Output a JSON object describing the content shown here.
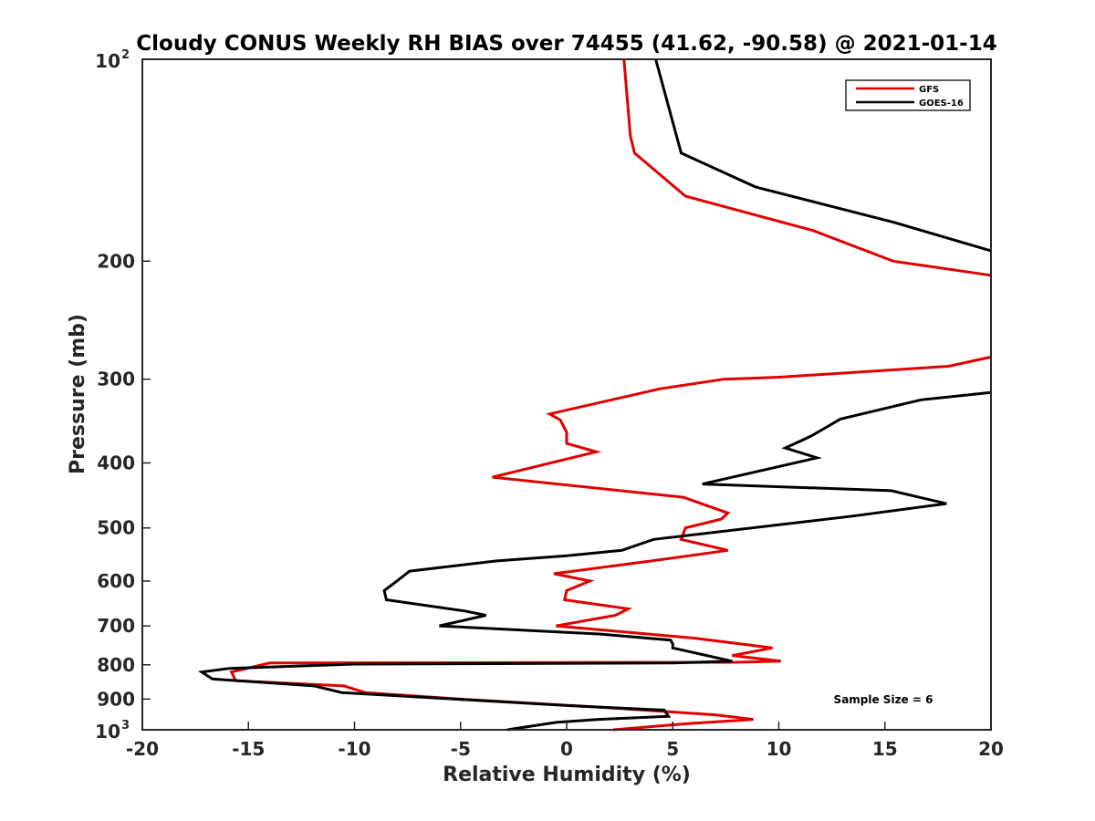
{
  "chart_data": {
    "type": "line",
    "title": "Cloudy CONUS Weekly RH BIAS over 74455 (41.62, -90.58) @ 2021-01-14",
    "xlabel": "Relative Humidity (%)",
    "ylabel": "Pressure (mb)",
    "xlim": [
      -20,
      20
    ],
    "ylim": [
      100,
      1000
    ],
    "y_scale": "log",
    "y_reversed": true,
    "x_ticks": [
      "-20",
      "-15",
      "-10",
      "-5",
      "0",
      "5",
      "10",
      "15",
      "20"
    ],
    "y_ticks": [
      {
        "value": 100,
        "base": "10",
        "exp": "2"
      },
      {
        "value": 200,
        "label": "200"
      },
      {
        "value": 300,
        "label": "300"
      },
      {
        "value": 400,
        "label": "400"
      },
      {
        "value": 500,
        "label": "500"
      },
      {
        "value": 600,
        "label": "600"
      },
      {
        "value": 700,
        "label": "700"
      },
      {
        "value": 800,
        "label": "800"
      },
      {
        "value": 900,
        "label": "900"
      },
      {
        "value": 1000,
        "base": "10",
        "exp": "3"
      }
    ],
    "legend_position": "top-right",
    "annotation": "Sample Size = 6",
    "series": [
      {
        "name": "GFS",
        "color": "#e00000",
        "segments": [
          [
            [
              2.7,
              100
            ],
            [
              3.0,
              130
            ],
            [
              3.2,
              138
            ],
            [
              5.6,
              160
            ],
            [
              11.6,
              180
            ],
            [
              15.4,
              200
            ],
            [
              20,
              210
            ]
          ],
          [
            [
              20,
              278
            ],
            [
              18,
              287
            ],
            [
              10,
              298
            ],
            [
              7.4,
              300
            ],
            [
              4.4,
              310
            ],
            [
              -0.8,
              338
            ],
            [
              -0.3,
              345
            ],
            [
              0.0,
              360
            ],
            [
              0.0,
              374
            ],
            [
              1.4,
              385
            ],
            [
              -3.5,
              420
            ],
            [
              5.5,
              450
            ],
            [
              7.6,
              475
            ],
            [
              7.3,
              485
            ],
            [
              5.6,
              500
            ],
            [
              5.4,
              520
            ],
            [
              7.6,
              540
            ],
            [
              4.0,
              560
            ],
            [
              -0.6,
              585
            ],
            [
              1.1,
              600
            ],
            [
              0.0,
              620
            ],
            [
              -0.1,
              640
            ],
            [
              2.9,
              660
            ],
            [
              2.3,
              675
            ],
            [
              -0.5,
              700
            ],
            [
              6.0,
              730
            ],
            [
              9.7,
              755
            ],
            [
              7.8,
              775
            ],
            [
              10.1,
              790
            ],
            [
              8.0,
              793
            ],
            [
              -14,
              795
            ],
            [
              -15.8,
              820
            ],
            [
              -15.6,
              845
            ],
            [
              -10.5,
              860
            ],
            [
              -9.5,
              880
            ],
            [
              -5.0,
              900
            ],
            [
              1.5,
              925
            ],
            [
              7.0,
              950
            ],
            [
              8.8,
              965
            ],
            [
              5.5,
              980
            ],
            [
              2.2,
              1000
            ]
          ]
        ]
      },
      {
        "name": "GOES-16",
        "color": "#000000",
        "segments": [
          [
            [
              4.2,
              100
            ],
            [
              5.4,
              138
            ],
            [
              8.9,
              155
            ],
            [
              15.4,
              175
            ],
            [
              20,
              193
            ]
          ],
          [
            [
              20,
              314
            ],
            [
              16.7,
              322
            ],
            [
              12.9,
              344
            ],
            [
              11.5,
              365
            ],
            [
              10.3,
              380
            ],
            [
              11.8,
              393
            ],
            [
              6.4,
              430
            ],
            [
              15.3,
              440
            ],
            [
              17.9,
              460
            ],
            [
              13.5,
              480
            ],
            [
              4.1,
              520
            ],
            [
              2.6,
              540
            ],
            [
              0.0,
              550
            ],
            [
              -3.3,
              560
            ],
            [
              -7.4,
              580
            ],
            [
              -8.0,
              600
            ],
            [
              -8.6,
              620
            ],
            [
              -8.5,
              640
            ],
            [
              -4.8,
              665
            ],
            [
              -3.8,
              675
            ],
            [
              -6.0,
              700
            ],
            [
              1.6,
              720
            ],
            [
              4.9,
              735
            ],
            [
              5.0,
              745
            ],
            [
              5.0,
              755
            ],
            [
              7.8,
              790
            ],
            [
              5.0,
              795
            ],
            [
              -10.0,
              798
            ],
            [
              -15.9,
              810
            ],
            [
              -17.2,
              820
            ],
            [
              -16.7,
              840
            ],
            [
              -11.9,
              860
            ],
            [
              -10.6,
              880
            ],
            [
              0.0,
              920
            ],
            [
              4.6,
              935
            ],
            [
              4.8,
              955
            ],
            [
              1.5,
              965
            ],
            [
              -0.5,
              975
            ],
            [
              -2.8,
              1000
            ]
          ]
        ]
      }
    ]
  }
}
